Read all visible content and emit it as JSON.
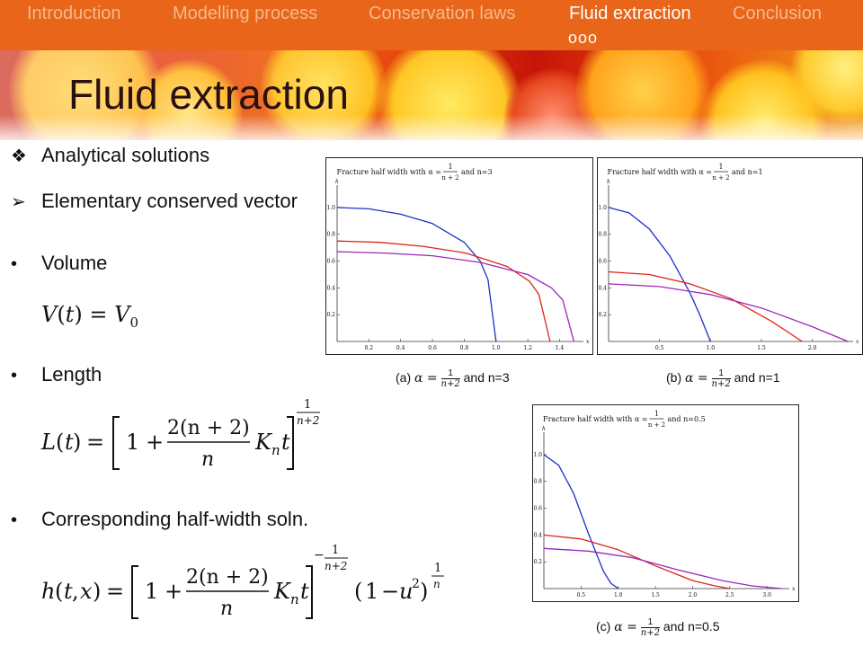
{
  "nav": {
    "items": [
      {
        "label": "Introduction",
        "active": false
      },
      {
        "label": "Modelling process",
        "active": false
      },
      {
        "label": "Conservation laws",
        "active": false
      },
      {
        "label": "Fluid extraction",
        "active": true
      },
      {
        "label": "Conclusion",
        "active": false
      }
    ],
    "dots": "ooo"
  },
  "slide": {
    "title": "Fluid extraction",
    "bullets": {
      "analytical": {
        "icon": "diamond-bullet-icon",
        "text": "Analytical solutions"
      },
      "elementary": {
        "icon": "arrow-bullet-icon",
        "text": "Elementary conserved vector"
      },
      "volume": {
        "icon": "dot-bullet-icon",
        "text": "Volume"
      },
      "length": {
        "icon": "dot-bullet-icon",
        "text": "Length"
      },
      "halfwidth": {
        "icon": "dot-bullet-icon",
        "text": "Corresponding half-width soln."
      }
    },
    "equations": {
      "volume": "V(t) = V₀",
      "length": "L(t) = [1 + 2(n+2)/n Kₙ t]^(1/(n+2))",
      "halfwidth": "h(t,x) = [1 + 2(n+2)/n Kₙ t]^(−1/(n+2)) (1 − u²)^(1/n)"
    },
    "eq_text": {
      "V": "V",
      "t": "t",
      "eq": "=",
      "V0": "V",
      "sub0": "0",
      "L": "L",
      "h": "h",
      "x": "x",
      "one": "1",
      "plus": "+",
      "minus": "−",
      "two_n2": "2(n + 2)",
      "n": "n",
      "K": "K",
      "subn": "n",
      "u2": "u",
      "sq": "2",
      "lparen": "(",
      "rparen": ")",
      "comma": ",",
      "one_over_n": "1"
    }
  },
  "colors": {
    "nav_bg": "#e8651a",
    "curve_blue": "#1f2fc9",
    "curve_red": "#e0231a",
    "curve_purple": "#9a28b8"
  },
  "chart_data": [
    {
      "type": "line",
      "title": "Fracture half width with α = 1/(n+2) and n=3",
      "xlabel": "x",
      "ylabel": "h",
      "xlim": [
        0,
        1.55
      ],
      "ylim": [
        0,
        1.1
      ],
      "xticks": [
        "0.2",
        "0.4",
        "0.6",
        "0.8",
        "1.0",
        "1.2",
        "1.4"
      ],
      "yticks": [
        "0.2",
        "0.4",
        "0.6",
        "0.8",
        "1.0"
      ],
      "series": [
        {
          "color": "#1f2fc9",
          "x": [
            0,
            0.2,
            0.4,
            0.6,
            0.8,
            0.9,
            0.95,
            1.0
          ],
          "y": [
            1.0,
            0.99,
            0.95,
            0.88,
            0.74,
            0.6,
            0.46,
            0.0
          ]
        },
        {
          "color": "#e0231a",
          "x": [
            0,
            0.27,
            0.54,
            0.81,
            1.07,
            1.21,
            1.27,
            1.34
          ],
          "y": [
            0.75,
            0.74,
            0.71,
            0.66,
            0.56,
            0.45,
            0.35,
            0.0
          ]
        },
        {
          "color": "#9a28b8",
          "x": [
            0,
            0.3,
            0.6,
            0.9,
            1.2,
            1.35,
            1.42,
            1.49
          ],
          "y": [
            0.67,
            0.66,
            0.64,
            0.59,
            0.5,
            0.4,
            0.31,
            0.0
          ]
        }
      ],
      "caption": {
        "prefix": "(a)",
        "alpha": "α =",
        "num": "1",
        "den": "n+2",
        "suffix": "and n=3"
      }
    },
    {
      "type": "line",
      "title": "Fracture half width with α = 1/(n+2) and n=1",
      "xlabel": "x",
      "ylabel": "h",
      "xlim": [
        0,
        2.4
      ],
      "ylim": [
        0,
        1.1
      ],
      "xticks": [
        "0.5",
        "1.0",
        "1.5",
        "2.0"
      ],
      "yticks": [
        "0.2",
        "0.4",
        "0.6",
        "0.8",
        "1.0"
      ],
      "series": [
        {
          "color": "#1f2fc9",
          "x": [
            0,
            0.2,
            0.4,
            0.6,
            0.8,
            0.9,
            1.0
          ],
          "y": [
            1.0,
            0.96,
            0.84,
            0.64,
            0.36,
            0.19,
            0.0
          ]
        },
        {
          "color": "#e0231a",
          "x": [
            0,
            0.4,
            0.8,
            1.2,
            1.6,
            1.9
          ],
          "y": [
            0.52,
            0.5,
            0.43,
            0.32,
            0.15,
            0.0
          ]
        },
        {
          "color": "#9a28b8",
          "x": [
            0,
            0.5,
            1.0,
            1.5,
            2.0,
            2.35
          ],
          "y": [
            0.43,
            0.41,
            0.35,
            0.25,
            0.11,
            0.0
          ]
        }
      ],
      "caption": {
        "prefix": "(b)",
        "alpha": "α =",
        "num": "1",
        "den": "n+2",
        "suffix": "and n=1"
      }
    },
    {
      "type": "line",
      "title": "Fracture half width with α = 1/(n+2) and n=0.5",
      "xlabel": "x",
      "ylabel": "h",
      "xlim": [
        0,
        3.3
      ],
      "ylim": [
        0,
        1.1
      ],
      "xticks": [
        "0.5",
        "1.0",
        "1.5",
        "2.0",
        "2.5",
        "3.0"
      ],
      "yticks": [
        "0.2",
        "0.4",
        "0.6",
        "0.8",
        "1.0"
      ],
      "series": [
        {
          "color": "#1f2fc9",
          "x": [
            0,
            0.2,
            0.4,
            0.6,
            0.8,
            0.9,
            1.0
          ],
          "y": [
            1.0,
            0.92,
            0.71,
            0.41,
            0.13,
            0.04,
            0.0
          ]
        },
        {
          "color": "#e0231a",
          "x": [
            0,
            0.5,
            1.0,
            1.5,
            2.0,
            2.3,
            2.5
          ],
          "y": [
            0.4,
            0.37,
            0.29,
            0.17,
            0.06,
            0.02,
            0.0
          ]
        },
        {
          "color": "#9a28b8",
          "x": [
            0,
            0.6,
            1.2,
            1.8,
            2.4,
            2.8,
            3.2
          ],
          "y": [
            0.3,
            0.28,
            0.23,
            0.14,
            0.06,
            0.02,
            0.0
          ]
        }
      ],
      "caption": {
        "prefix": "(c)",
        "alpha": "α =",
        "num": "1",
        "den": "n+2",
        "suffix": "and n=0.5"
      }
    }
  ]
}
